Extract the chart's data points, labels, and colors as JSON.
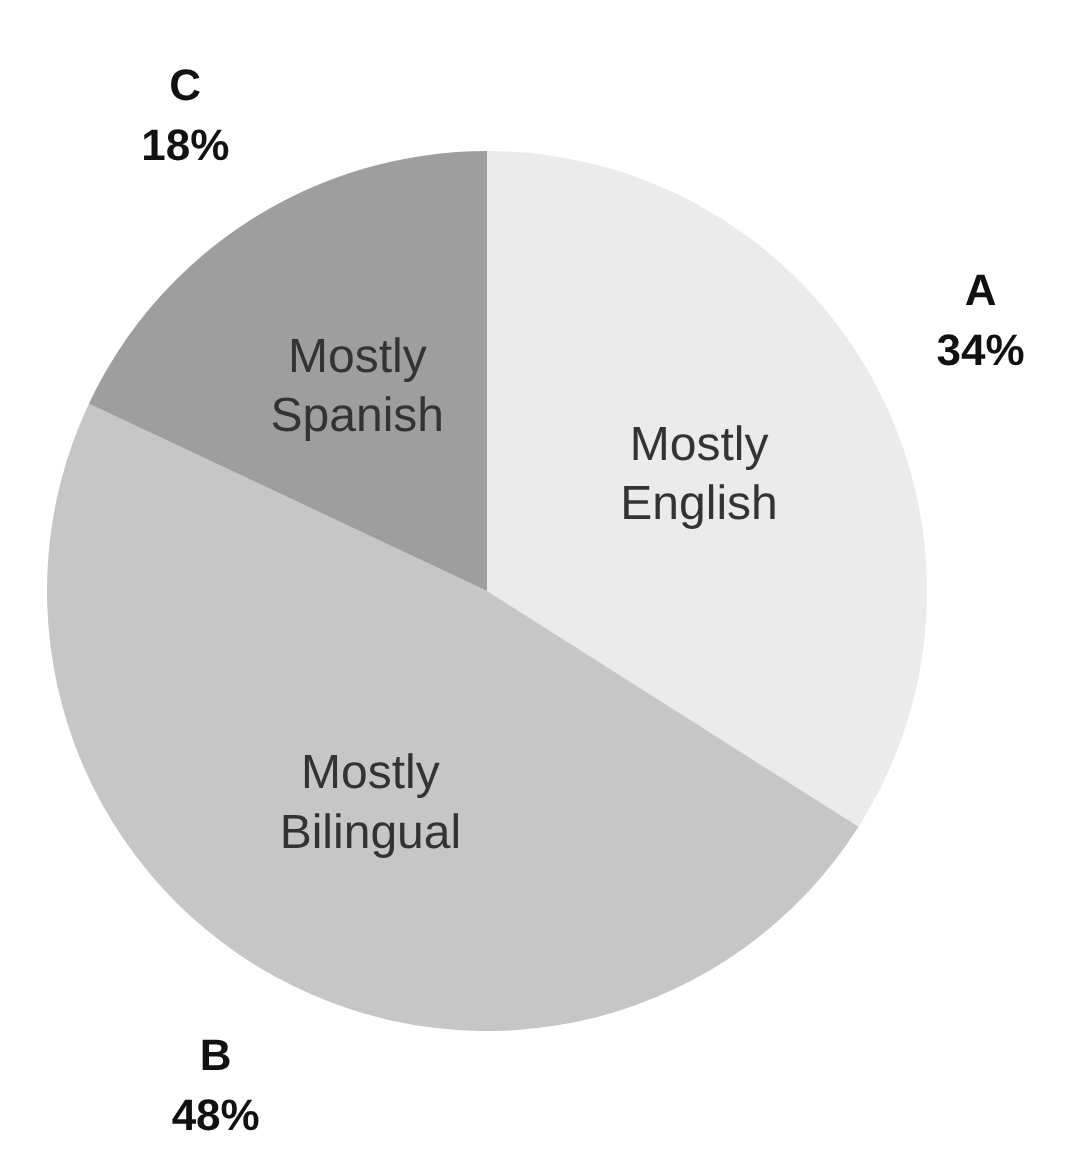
{
  "chart_data": {
    "type": "pie",
    "categories": [
      "Mostly\nEnglish",
      "Mostly\nBilingual",
      "Mostly\nSpanish"
    ],
    "values": [
      34,
      48,
      18
    ],
    "colors": [
      "#ebebeb",
      "#c6c6c6",
      "#9e9e9e"
    ],
    "value_labels": [
      "34%",
      "48%",
      "18%"
    ],
    "annotations": [
      "A",
      "B",
      "C"
    ]
  }
}
